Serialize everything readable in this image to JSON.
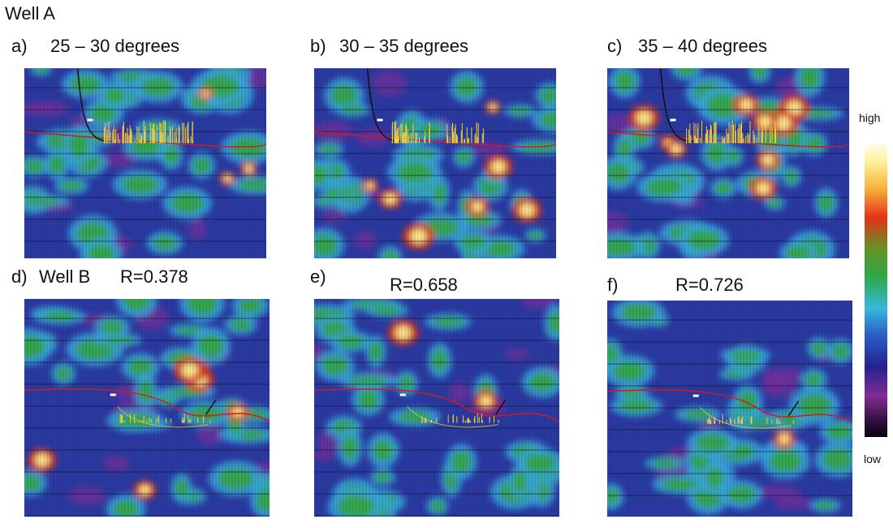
{
  "title": "Well A",
  "panels": [
    {
      "id": "a",
      "label": "a)",
      "title": "25 – 30 degrees"
    },
    {
      "id": "b",
      "label": "b)",
      "title": "30 – 35 degrees"
    },
    {
      "id": "c",
      "label": "c)",
      "title": "35 – 40 degrees"
    },
    {
      "id": "d",
      "label": "d)",
      "well": "Well B",
      "title": "R=0.378"
    },
    {
      "id": "e",
      "label": "e)",
      "title": "R=0.658"
    },
    {
      "id": "f",
      "label": "f)",
      "title": "R=0.726"
    }
  ],
  "colorbar": {
    "high_label": "high",
    "low_label": "low"
  },
  "colors": {
    "background": "#2a3aa0",
    "horizon": "#d21b1b",
    "well_path": "#111111",
    "log_spikes": "#f2d13a"
  }
}
